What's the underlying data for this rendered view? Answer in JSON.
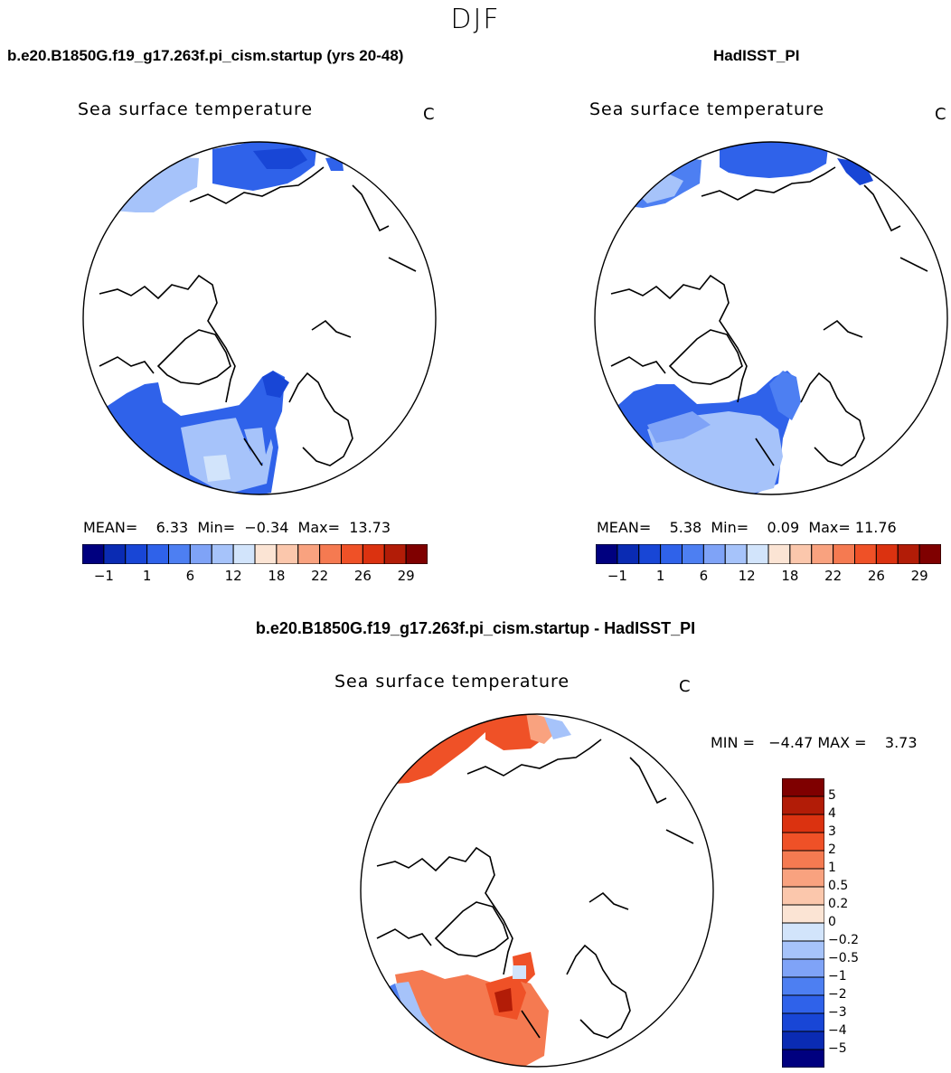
{
  "season": "DJF",
  "panels": [
    {
      "case_title": "b.e20.B1850G.f19_g17.263f.pi_cism.startup (yrs 20-48)",
      "variable": "Sea surface temperature",
      "units": "C",
      "stats": {
        "mean_label": "MEAN=",
        "mean": "6.33",
        "min_label": "Min=",
        "min": "−0.34",
        "max_label": "Max=",
        "max": "13.73"
      }
    },
    {
      "case_title": "HadISST_PI",
      "variable": "Sea surface temperature",
      "units": "C",
      "stats": {
        "mean_label": "MEAN=",
        "mean": "5.38",
        "min_label": "Min=",
        "min": "0.09",
        "max_label": "Max=",
        "max": "11.76"
      }
    }
  ],
  "diff_panel": {
    "case_title": "b.e20.B1850G.f19_g17.263f.pi_cism.startup - HadISST_PI",
    "variable": "Sea surface temperature",
    "units": "C",
    "minmax_text": "MIN =   −4.47 MAX =    3.73"
  },
  "colorbar_horizontal": {
    "colors": [
      "#00007f",
      "#0a2bb3",
      "#1846d6",
      "#2f62ea",
      "#4d7ff2",
      "#7fa3f7",
      "#a6c3fa",
      "#d2e4fb",
      "#fbe4d4",
      "#fbc7ac",
      "#f9a27f",
      "#f57a51",
      "#ef5127",
      "#db3210",
      "#b21c07",
      "#7f0000"
    ],
    "tick_labels": [
      "−1",
      "1",
      "6",
      "12",
      "18",
      "22",
      "26",
      "29"
    ]
  },
  "colorbar_vertical": {
    "colors_top_to_bottom": [
      "#7f0000",
      "#b21c07",
      "#db3210",
      "#ef5127",
      "#f57a51",
      "#f9a27f",
      "#fbc7ac",
      "#fbe4d4",
      "#d2e4fb",
      "#a6c3fa",
      "#7fa3f7",
      "#4d7ff2",
      "#2f62ea",
      "#1846d6",
      "#0a2bb3",
      "#00007f"
    ],
    "tick_labels": [
      "5",
      "4",
      "3",
      "2",
      "1",
      "0.5",
      "0.2",
      "0",
      "−0.2",
      "−0.5",
      "−1",
      "−2",
      "−3",
      "−4",
      "−5"
    ]
  },
  "map_colors": {
    "lightblue": "#a6c3fa",
    "midblue": "#4d7ff2",
    "blue": "#2f62ea",
    "darkblue": "#1846d6",
    "paleblue": "#d2e4fb",
    "orange": "#ef5127",
    "lightorange": "#f57a51",
    "peach": "#f9a27f",
    "darkred": "#b21c07"
  }
}
